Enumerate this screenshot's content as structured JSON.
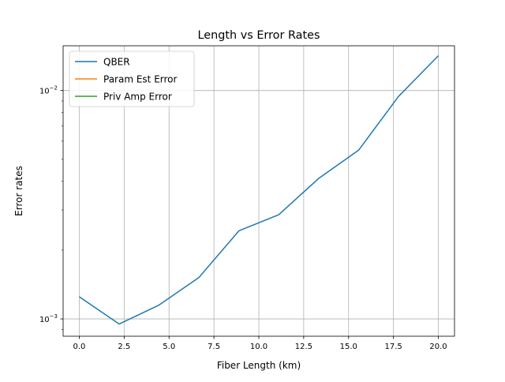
{
  "chart_data": {
    "type": "line",
    "title": "Length vs Error Rates",
    "xlabel": "Fiber Length (km)",
    "ylabel": "Error rates",
    "yscale": "log",
    "xlim": [
      -0.9,
      20.9
    ],
    "ylim": [
      0.00084,
      0.0157
    ],
    "grid": true,
    "legend_position": "top-left",
    "xticks": [
      0.0,
      2.5,
      5.0,
      7.5,
      10.0,
      12.5,
      15.0,
      17.5,
      20.0
    ],
    "xtick_labels": [
      "0.0",
      "2.5",
      "5.0",
      "7.5",
      "10.0",
      "12.5",
      "15.0",
      "17.5",
      "20.0"
    ],
    "yticks": [
      0.001,
      0.01
    ],
    "ytick_labels": [
      {
        "base": "10",
        "exp": "−3"
      },
      {
        "base": "10",
        "exp": "−2"
      }
    ],
    "series": [
      {
        "name": "QBER",
        "color": "#1f77b4",
        "x": [
          0.0,
          2.22,
          4.44,
          6.67,
          8.89,
          11.11,
          13.33,
          15.56,
          17.78,
          20.0
        ],
        "y": [
          0.00125,
          0.00095,
          0.00115,
          0.00152,
          0.00243,
          0.00286,
          0.00412,
          0.00548,
          0.00942,
          0.0142
        ]
      },
      {
        "name": "Param Est Error",
        "color": "#ff7f0e",
        "x": [],
        "y": []
      },
      {
        "name": "Priv Amp Error",
        "color": "#2ca02c",
        "x": [],
        "y": []
      }
    ]
  }
}
